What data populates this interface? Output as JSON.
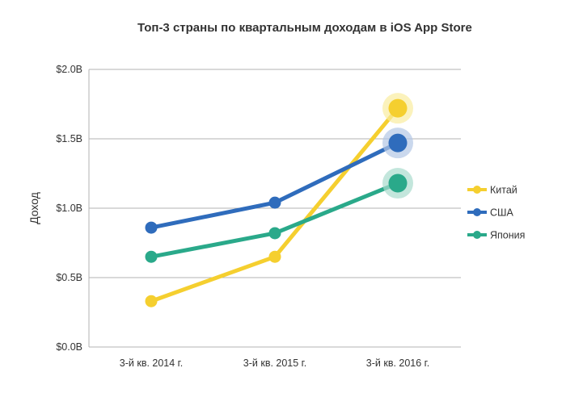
{
  "chart_data": {
    "type": "line",
    "title": "Топ-3 страны по квартальным доходам в iOS App Store",
    "xlabel": "",
    "ylabel": "Доход",
    "categories": [
      "3-й кв. 2014 г.",
      "3-й кв. 2015 г.",
      "3-й кв. 2016 г."
    ],
    "ylim": [
      0,
      2.0
    ],
    "yticks": [
      0.0,
      0.5,
      1.0,
      1.5,
      2.0
    ],
    "ytick_labels": [
      "$0.0B",
      "$0.5B",
      "$1.0B",
      "$1.5B",
      "$2.0B"
    ],
    "grid": true,
    "legend_position": "right",
    "series": [
      {
        "name": "Китай",
        "values": [
          0.33,
          0.65,
          1.72
        ],
        "color": "#f5cf2f",
        "halo": "#faeca0"
      },
      {
        "name": "США",
        "values": [
          0.86,
          1.04,
          1.47
        ],
        "color": "#2f6cbc",
        "halo": "#b4c8e6"
      },
      {
        "name": "Япония",
        "values": [
          0.65,
          0.82,
          1.18
        ],
        "color": "#2aa98a",
        "halo": "#a9dccd"
      }
    ]
  }
}
